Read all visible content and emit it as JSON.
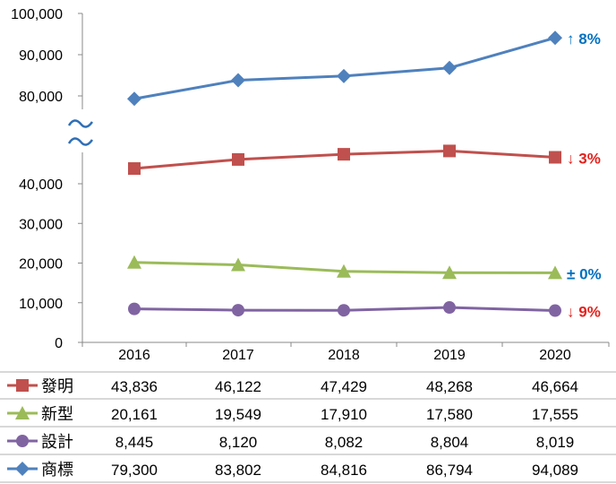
{
  "chart_data": {
    "type": "line",
    "title": "",
    "xlabel": "",
    "ylabel": "",
    "ylim": [
      0,
      100000
    ],
    "axis_break": {
      "from": 50000,
      "to": 70000
    },
    "y_ticks": [
      "0",
      "10,000",
      "20,000",
      "30,000",
      "40,000",
      "80,000",
      "90,000",
      "100,000"
    ],
    "y_tick_values": [
      0,
      10000,
      20000,
      30000,
      40000,
      80000,
      90000,
      100000
    ],
    "categories": [
      "2016",
      "2017",
      "2018",
      "2019",
      "2020"
    ],
    "series": [
      {
        "name": "發明",
        "color": "#c0504d",
        "marker": "square",
        "values": [
          43836,
          46122,
          47429,
          48268,
          46664
        ],
        "labels": [
          "43,836",
          "46,122",
          "47,429",
          "48,268",
          "46,664"
        ],
        "change": {
          "arrow": "↓",
          "text": "3%",
          "color": "#e3211c"
        }
      },
      {
        "name": "新型",
        "color": "#9bbb59",
        "marker": "triangle",
        "values": [
          20161,
          19549,
          17910,
          17580,
          17555
        ],
        "labels": [
          "20,161",
          "19,549",
          "17,910",
          "17,580",
          "17,555"
        ],
        "change": {
          "arrow": "±",
          "text": "0%",
          "color": "#0070c0"
        }
      },
      {
        "name": "設計",
        "color": "#8064a2",
        "marker": "circle",
        "values": [
          8445,
          8120,
          8082,
          8804,
          8019
        ],
        "labels": [
          "8,445",
          "8,120",
          "8,082",
          "8,804",
          "8,019"
        ],
        "change": {
          "arrow": "↓",
          "text": "9%",
          "color": "#e3211c"
        }
      },
      {
        "name": "商標",
        "color": "#4f81bd",
        "marker": "diamond",
        "values": [
          79300,
          83802,
          84816,
          86794,
          94089
        ],
        "labels": [
          "79,300",
          "83,802",
          "84,816",
          "86,794",
          "94,089"
        ],
        "change": {
          "arrow": "↑",
          "text": "8%",
          "color": "#0070c0"
        }
      }
    ]
  }
}
